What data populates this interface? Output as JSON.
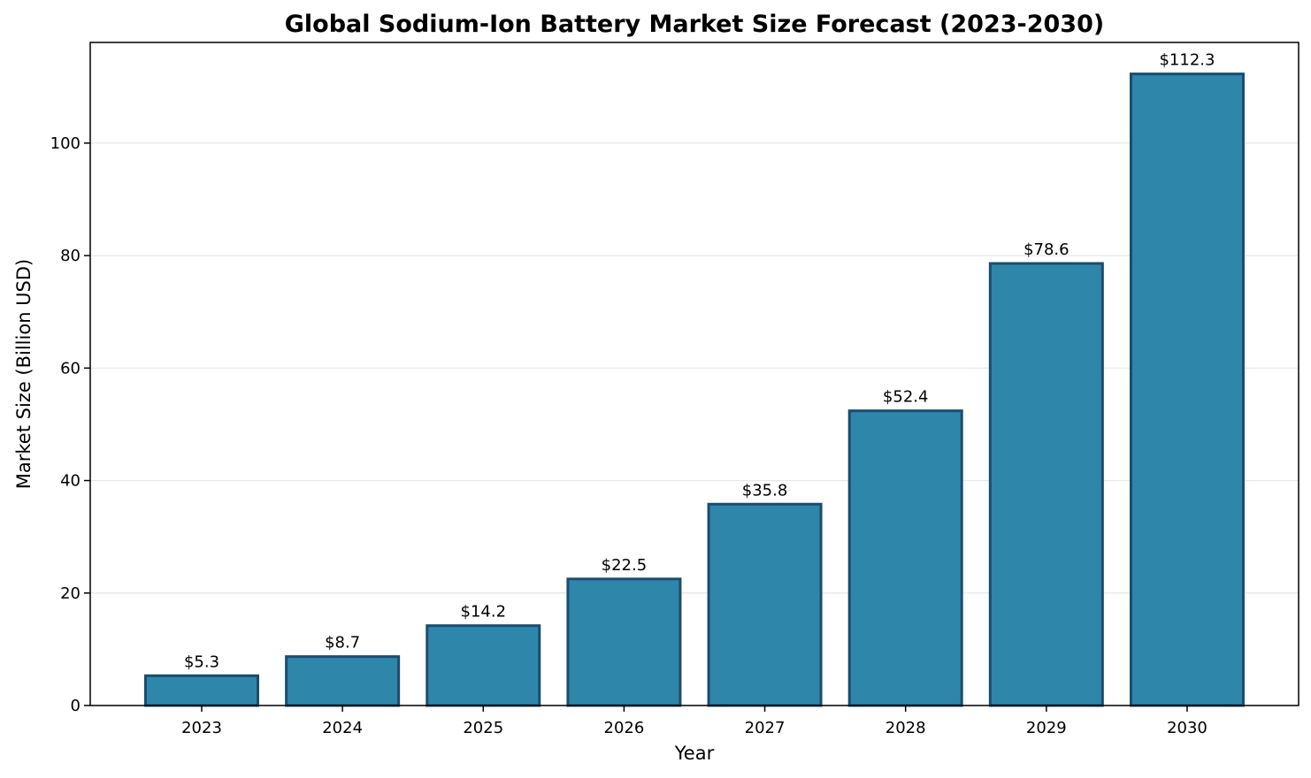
{
  "chart_data": {
    "type": "bar",
    "title": "Global Sodium-Ion Battery Market Size Forecast (2023-2030)",
    "xlabel": "Year",
    "ylabel": "Market Size (Billion USD)",
    "categories": [
      "2023",
      "2024",
      "2025",
      "2026",
      "2027",
      "2028",
      "2029",
      "2030"
    ],
    "values": [
      5.3,
      8.7,
      14.2,
      22.5,
      35.8,
      52.4,
      78.6,
      112.3
    ],
    "data_labels": [
      "$5.3",
      "$8.7",
      "$14.2",
      "$22.5",
      "$35.8",
      "$52.4",
      "$78.6",
      "$112.3"
    ],
    "ylim": [
      0,
      117.9
    ],
    "yticks": [
      0,
      20,
      40,
      60,
      80,
      100
    ],
    "grid": "horizontal",
    "legend": "none",
    "colors": {
      "bar_fill": "#2e86ab",
      "bar_edge": "#1b4d6e",
      "grid": "#e6e6e6",
      "axis": "#000000"
    }
  }
}
